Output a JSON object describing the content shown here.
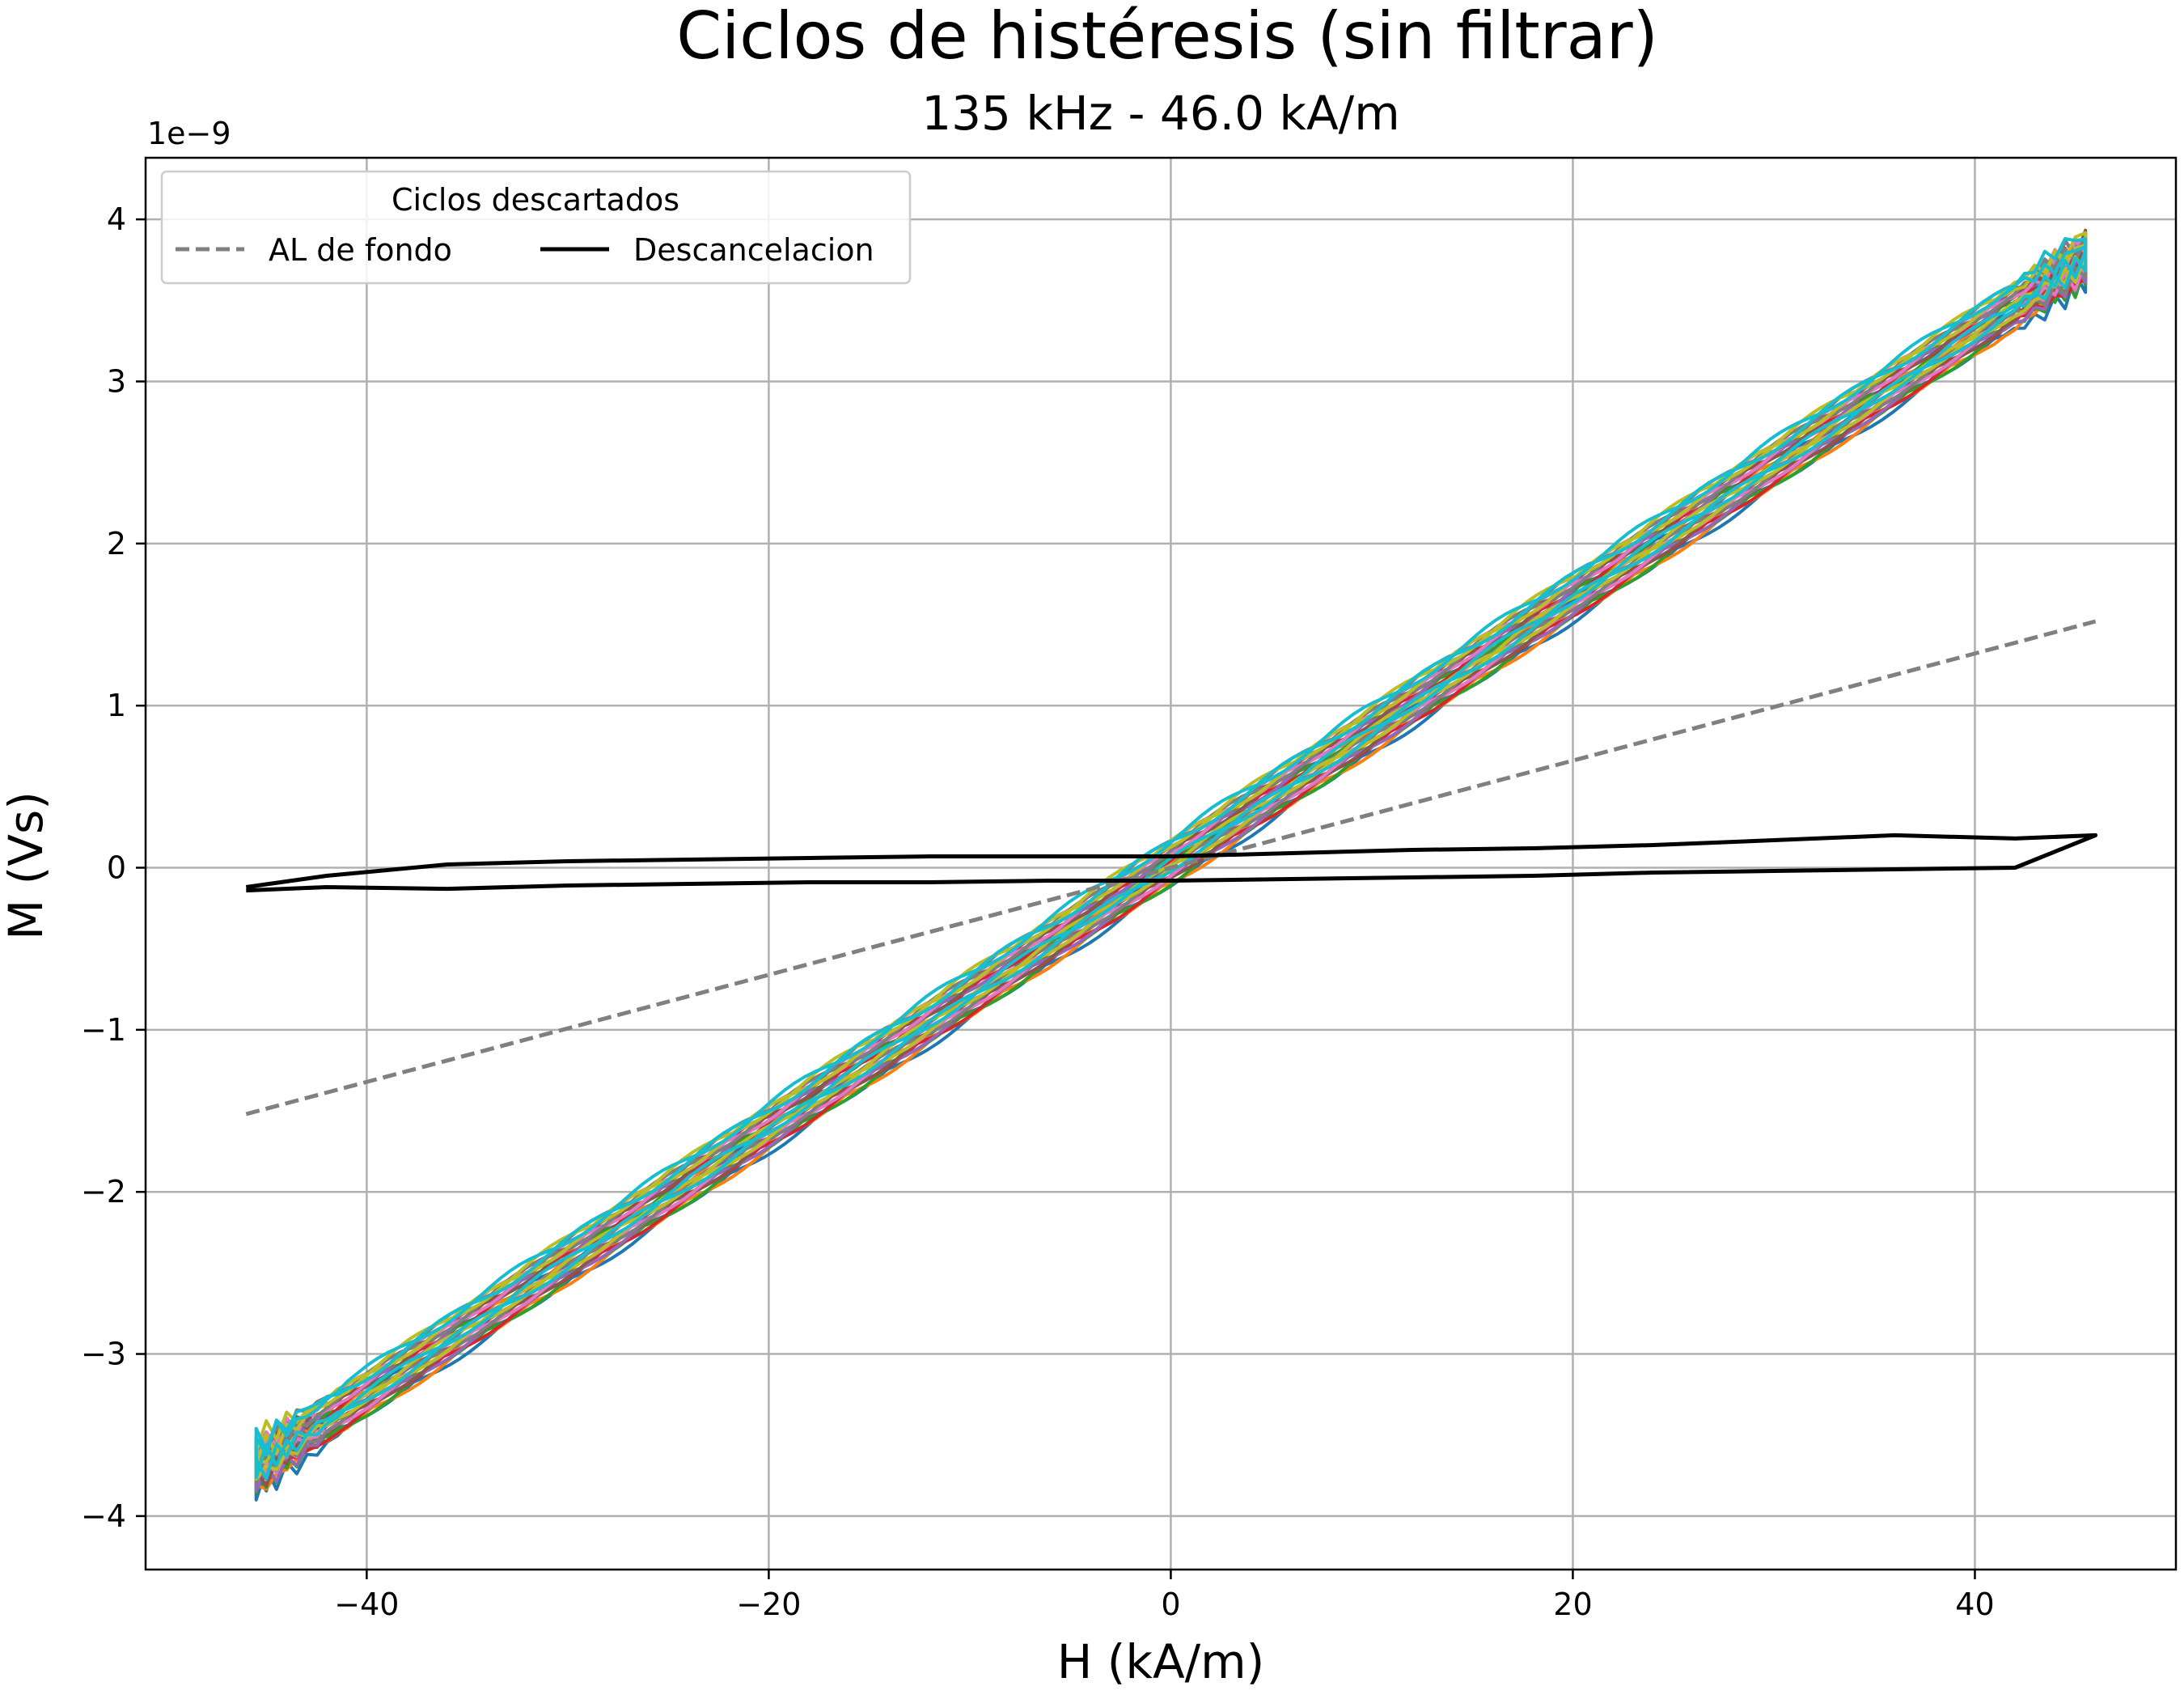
{
  "chart_data": {
    "type": "line",
    "title": "Ciclos de histéresis (sin filtrar)",
    "subtitle": "135 kHz - 46.0 kA/m",
    "xlabel": "H (kA/m)",
    "ylabel": "M (Vs)",
    "y_offset_label": "1e−9",
    "xlim": [
      -51,
      50
    ],
    "ylim": [
      -4.33,
      4.38
    ],
    "xticks": [
      -40,
      -20,
      0,
      20,
      40
    ],
    "xtick_labels": [
      "−40",
      "−20",
      "0",
      "20",
      "40"
    ],
    "yticks": [
      -4,
      -3,
      -2,
      -1,
      0,
      1,
      2,
      3,
      4
    ],
    "ytick_labels": [
      "−4",
      "−3",
      "−2",
      "−1",
      "0",
      "1",
      "2",
      "3",
      "4"
    ],
    "grid": true,
    "legend": {
      "title": "Ciclos descartados",
      "placement": "top-left",
      "entries": [
        {
          "label": "AL de fondo",
          "color": "#808080",
          "style": "dashed"
        },
        {
          "label": "Descancelacion",
          "color": "#000000",
          "style": "solid"
        }
      ]
    },
    "series": [
      {
        "name": "AL de fondo",
        "color": "#808080",
        "style": "dashed",
        "x": [
          -46,
          46
        ],
        "y": [
          -1.52,
          1.52
        ]
      },
      {
        "name": "Descancelacion",
        "color": "#000000",
        "style": "solid",
        "x": [
          -46,
          -42,
          -36,
          -30,
          -24,
          -18,
          -12,
          -6,
          0,
          6,
          12,
          18,
          24,
          30,
          36,
          42,
          46,
          42,
          36,
          30,
          24,
          18,
          12,
          6,
          0,
          -6,
          -12,
          -18,
          -24,
          -30,
          -36,
          -42,
          -46
        ],
        "y": [
          -0.14,
          -0.12,
          -0.13,
          -0.11,
          -0.1,
          -0.09,
          -0.09,
          -0.08,
          -0.08,
          -0.07,
          -0.06,
          -0.05,
          -0.03,
          -0.02,
          -0.01,
          0.0,
          0.2,
          0.18,
          0.2,
          0.17,
          0.14,
          0.12,
          0.11,
          0.09,
          0.07,
          0.07,
          0.07,
          0.06,
          0.05,
          0.04,
          0.02,
          -0.05,
          -0.12
        ]
      }
    ],
    "cycle_band": {
      "description": "",
      "colors": [
        "#1f77b4",
        "#ff7f0e",
        "#2ca02c",
        "#d62728",
        "#9467bd",
        "#8c564b",
        "#e377c2",
        "#7f7f7f",
        "#bcbd22",
        "#17becf"
      ],
      "x_range": [
        -45.5,
        45.5
      ],
      "y_at_min": -3.7,
      "y_at_max": 3.75
    }
  }
}
